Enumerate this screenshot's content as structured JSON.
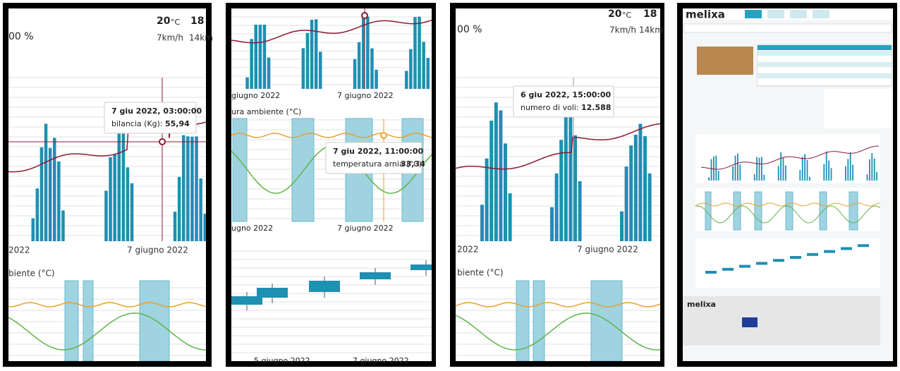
{
  "panels": [
    {
      "temperature": "20",
      "temp_unit": "°C",
      "temperature_2": "18",
      "humidity": "00 %",
      "wind": "7km/h",
      "wind_2": "14km",
      "tooltip": {
        "date": "7 giu 2022, 03:00:00",
        "label": "bilancia (Kg):",
        "value": "55,94"
      },
      "axis_labels": [
        "2022",
        "7 giugno 2022"
      ],
      "section_title": "biente (°C)"
    },
    {
      "axis_labels_top": [
        "giugno 2022",
        "7 giugno 2022"
      ],
      "section_title": "ura ambiente (°C)",
      "tooltip": {
        "date": "7 giu 2022, 11:00:00",
        "label": "temperatura arnia (°C):",
        "value": "33,34"
      },
      "axis_labels_mid": [
        "ugno 2022",
        "7 giugno 2022"
      ],
      "axis_labels_bottom": [
        "5 giugno 2022",
        "7 giugno 2022"
      ]
    },
    {
      "temperature": "20",
      "temp_unit": "°C",
      "temperature_2": "18",
      "humidity": "00 %",
      "wind": "7km/h",
      "wind_2": "14km",
      "tooltip": {
        "date": "6 giu 2022, 15:00:00",
        "label": "numero di voli:",
        "value": "12.588"
      },
      "axis_labels": [
        "2022",
        "7 giugno 2022"
      ],
      "section_title": "biente (°C)"
    },
    {
      "logo": "melixa",
      "footer_logo": "melixa"
    }
  ]
}
